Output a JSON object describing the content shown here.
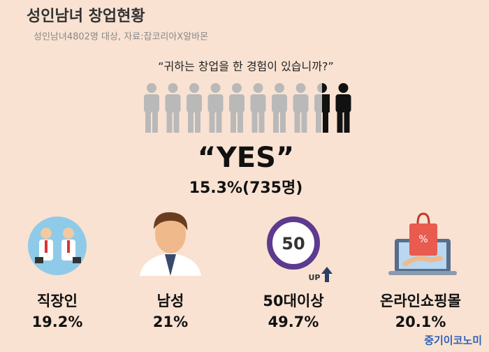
{
  "header": {
    "title": "성인남녀 창업현황",
    "subtitle": "성인남녀4802명 대상, 자료:잡코리아X알바몬"
  },
  "survey": {
    "question": "“귀하는 창업을 한 경험이 있습니까?”",
    "answer": "“YES”",
    "result": "15.3%(735명)"
  },
  "items": [
    {
      "label": "직장인",
      "value": "19.2%"
    },
    {
      "label": "남성",
      "value": "21%"
    },
    {
      "label": "50대이상",
      "value": "49.7%",
      "icon_number": "50",
      "icon_text": "UP"
    },
    {
      "label": "온라인쇼핑몰",
      "value": "20.1%"
    }
  ],
  "footer": {
    "brand": "중기이코노미"
  }
}
